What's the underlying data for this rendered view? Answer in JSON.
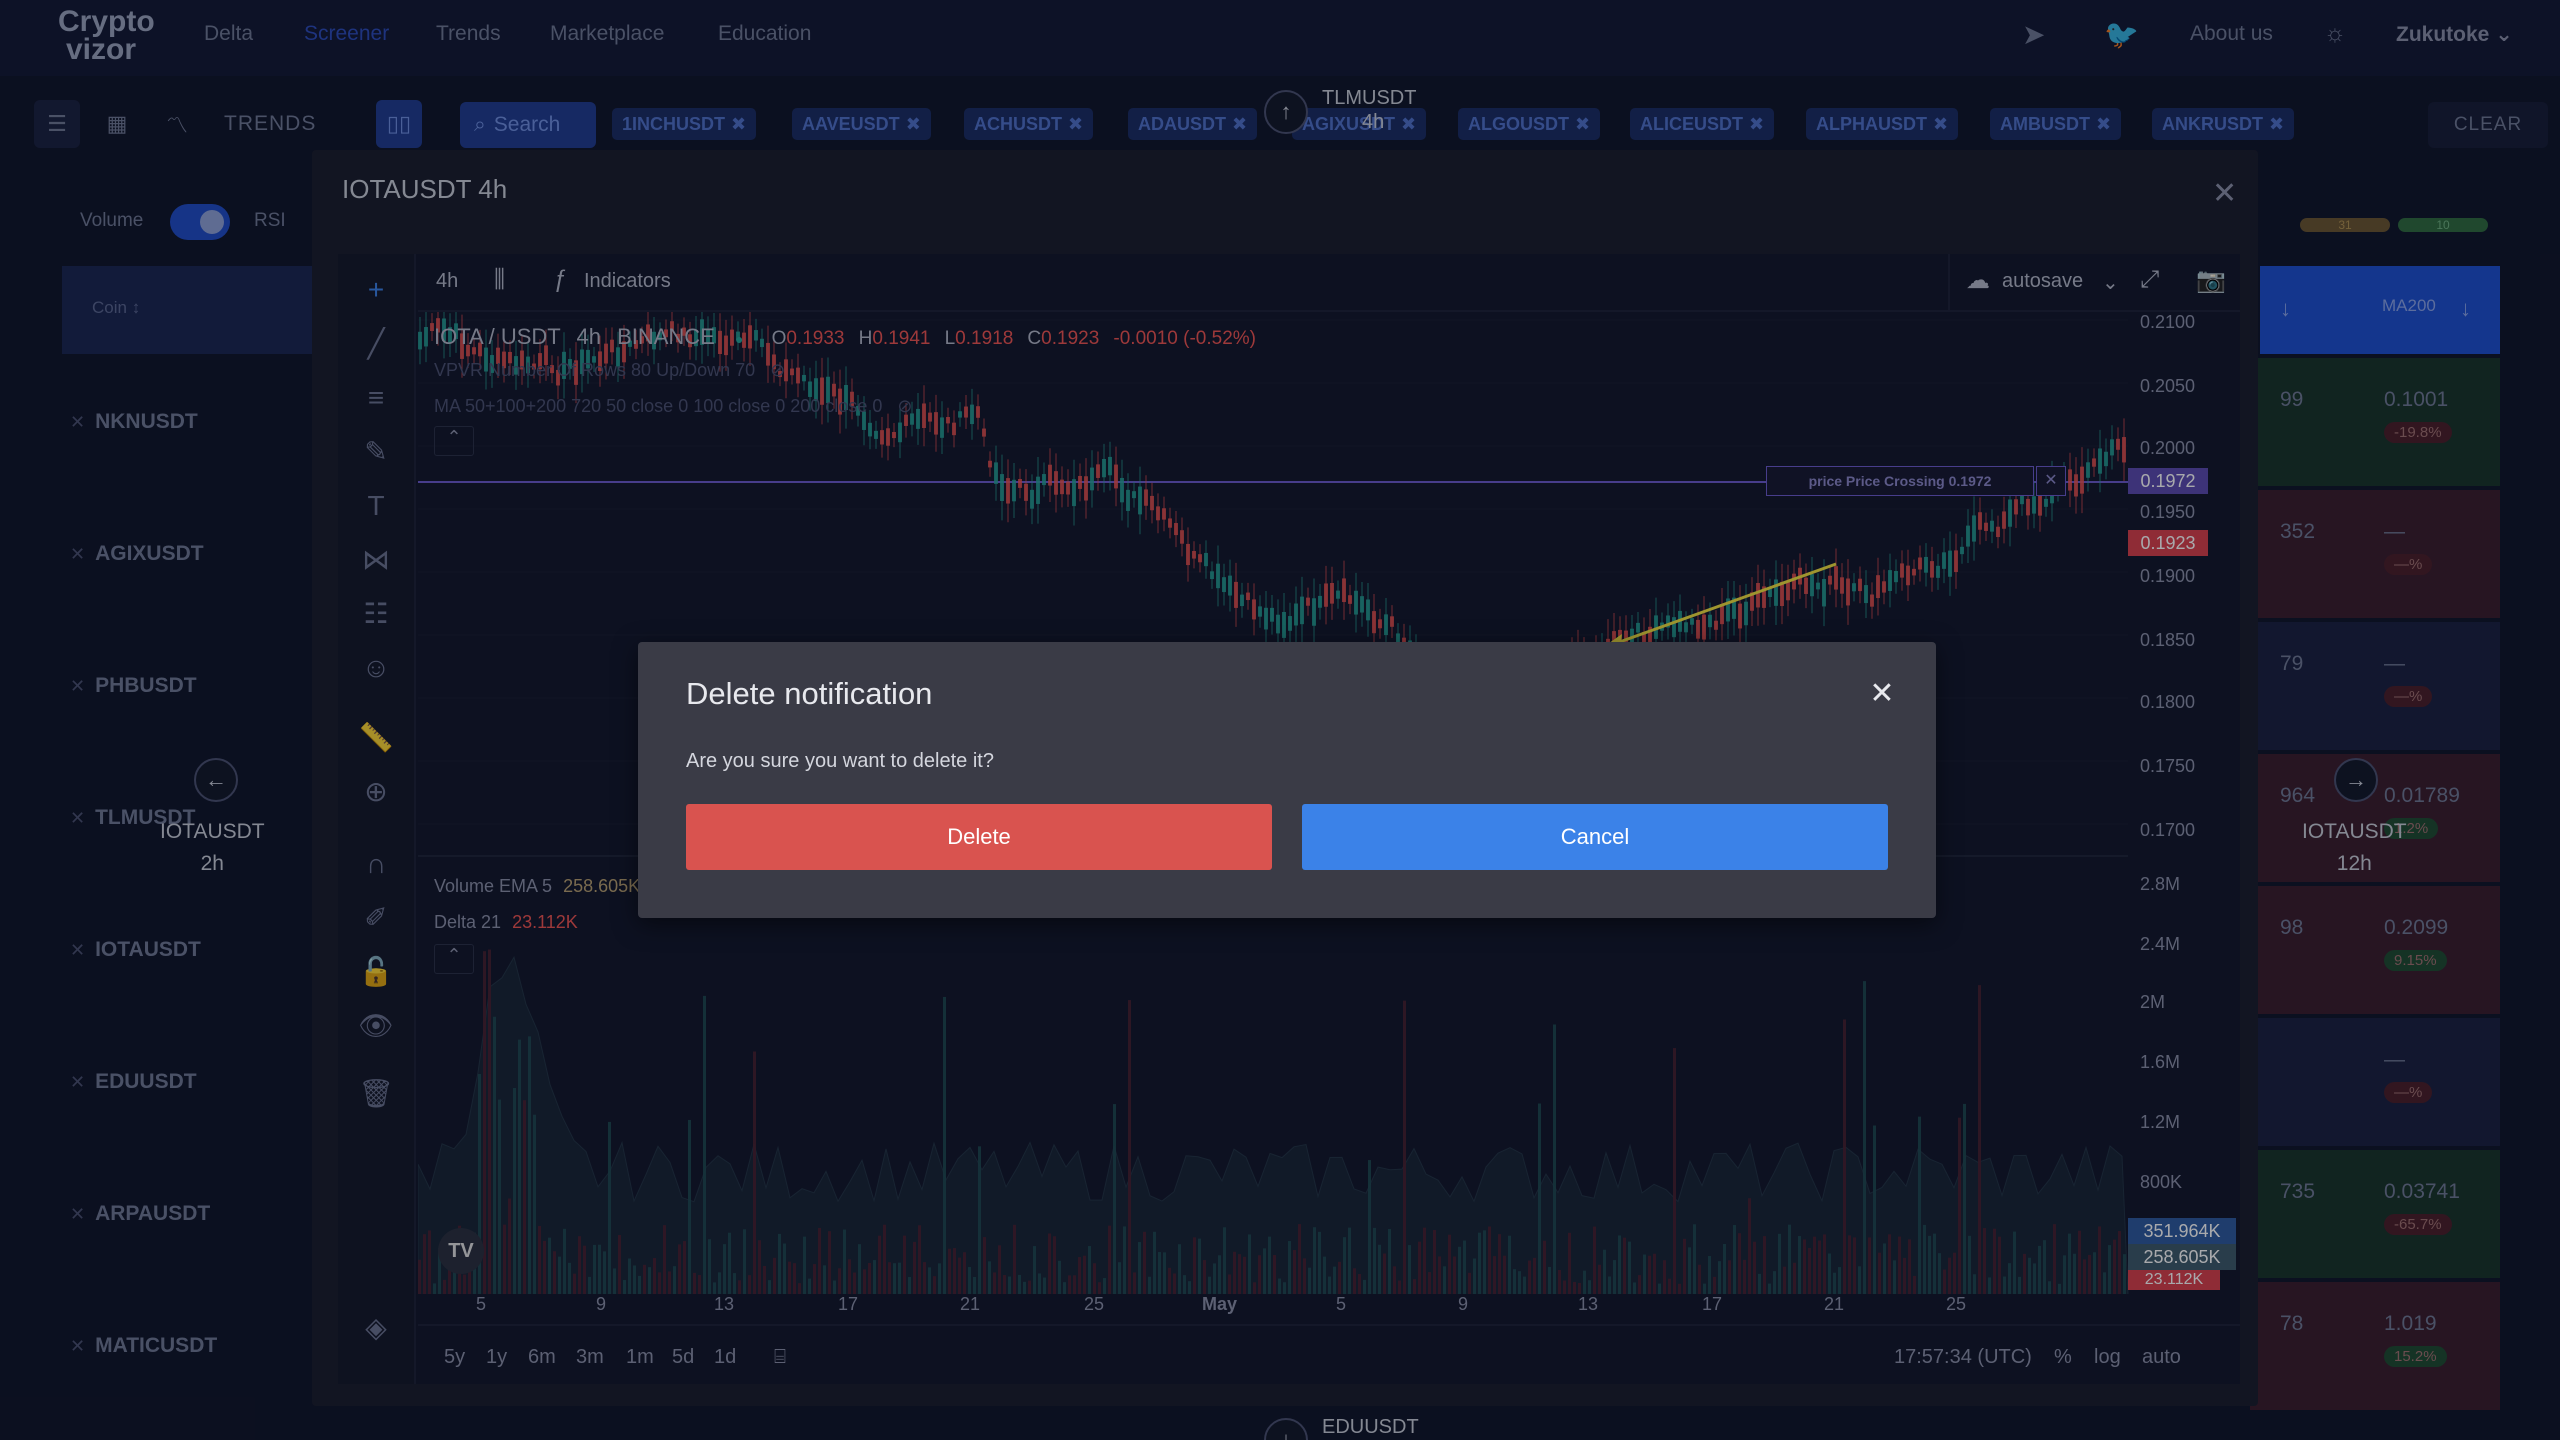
{
  "header": {
    "logo_line1": "Crypto",
    "logo_line2": "vizor",
    "nav": [
      "Delta",
      "Screener",
      "Trends",
      "Marketplace",
      "Education"
    ],
    "about": "About us",
    "user": "Zukutoke"
  },
  "toolbar": {
    "trends_label": "TRENDS",
    "search_label": "Search",
    "chips": [
      "1INCHUSDT",
      "AAVEUSDT",
      "ACHUSDT",
      "ADAUSDT",
      "AGIXUSDT",
      "ALGOUSDT",
      "ALICEUSDT",
      "ALPHAUSDT",
      "AMBUSDT",
      "ANKRUSDT"
    ],
    "clear_label": "CLEAR"
  },
  "nav_cards": {
    "top": {
      "symbol": "TLMUSDT",
      "interval": "4h"
    },
    "left": {
      "symbol": "IOTAUSDT",
      "interval": "2h"
    },
    "right": {
      "symbol": "IOTAUSDT",
      "interval": "12h"
    },
    "bottom": {
      "symbol": "EDUUSDT"
    }
  },
  "left_panel": {
    "volume_label": "Volume",
    "rsi_label": "RSI",
    "coin_header": "Coin",
    "coins": [
      "NKNUSDT",
      "AGIXUSDT",
      "PHBUSDT",
      "TLMUSDT",
      "IOTAUSDT",
      "EDUUSDT",
      "ARPAUSDT",
      "MATICUSDT"
    ]
  },
  "right_panel": {
    "header_ma200": "MA200",
    "badges_top": [
      "31",
      "10"
    ],
    "col1": [
      "99",
      "352",
      "79",
      "964",
      "98",
      "",
      "735",
      "78"
    ],
    "col2": [
      {
        "value": "0.1001",
        "pct": "-19.8%"
      },
      {
        "value": "—",
        "pct": "—%"
      },
      {
        "value": "—",
        "pct": "—%"
      },
      {
        "value": "0.01789",
        "pct": "1.2%"
      },
      {
        "value": "0.2099",
        "pct": "9.15%"
      },
      {
        "value": "—",
        "pct": "—%"
      },
      {
        "value": "0.03741",
        "pct": "-65.7%"
      },
      {
        "value": "1.019",
        "pct": "15.2%"
      }
    ]
  },
  "chart_window": {
    "title": "IOTAUSDT 4h",
    "interval": "4h",
    "indicators_label": "Indicators",
    "autosave_label": "autosave",
    "pair": "IOTA / USDT",
    "pair_interval": "4h",
    "exchange": "BINANCE",
    "ohlc": {
      "o": "0.1933",
      "h": "0.1941",
      "l": "0.1918",
      "c": "0.1923",
      "change": "-0.0010 (-0.52%)"
    },
    "vpvr_line": "VPVR Number Of Rows 80 Up/Down 70",
    "ma_line": "MA 50+100+200 720 50 close 0 100 close 0 200 close 0",
    "volume_legend": "Volume EMA 5",
    "volume_value": "258.605K",
    "delta_legend": "Delta 21",
    "delta_value": "23.112K",
    "alert_label": "price Price Crossing 0.1972",
    "price_ticks": [
      "0.2100",
      "0.2050",
      "0.2000",
      "0.1950",
      "0.1900",
      "0.1850",
      "0.1800",
      "0.1750",
      "0.1700"
    ],
    "price_alert": "0.1972",
    "price_current": "0.1923",
    "volume_ticks": [
      "2.8M",
      "2.4M",
      "2M",
      "1.6M",
      "1.2M",
      "800K"
    ],
    "volume_boxes": [
      "351.964K",
      "258.605K",
      "23.112K"
    ],
    "time_ticks": [
      "5",
      "9",
      "13",
      "17",
      "21",
      "25",
      "May",
      "5",
      "9",
      "13",
      "17",
      "21",
      "25"
    ],
    "ranges": [
      "5y",
      "1y",
      "6m",
      "3m",
      "1m",
      "5d",
      "1d"
    ],
    "clock": "17:57:34 (UTC)",
    "scale_opts": [
      "%",
      "log",
      "auto"
    ]
  },
  "dialog": {
    "title": "Delete notification",
    "message": "Are you sure you want to delete it?",
    "delete_label": "Delete",
    "cancel_label": "Cancel"
  },
  "colors": {
    "delete": "#d9534f",
    "cancel": "#3b82e8",
    "alert_line": "#6a5acd",
    "arrow": "#f0e040"
  }
}
